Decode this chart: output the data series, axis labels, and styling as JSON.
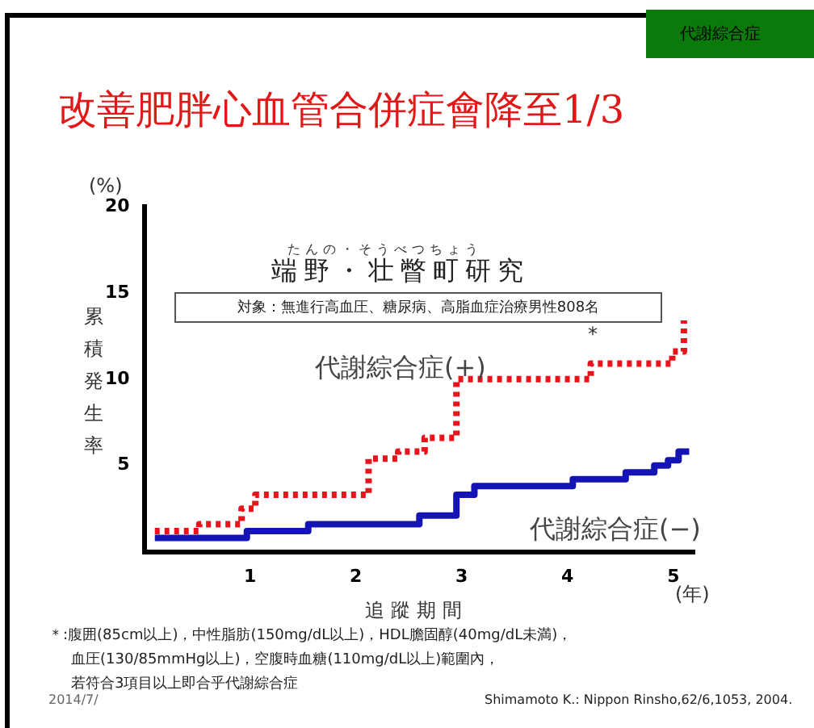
{
  "chart_data": {
    "type": "step",
    "title": "改善肥胖心血管合併症會降至1/3",
    "subtitle": "端野・壮瞥町研究",
    "xlabel": "追蹤期間",
    "ylabel": "累積発生率",
    "annotations": [
      "代謝綜合症",
      "たんの・そうべつちょう",
      "対象：無進行高血圧、糖尿病、高脂血症治療男性808名",
      "(%)",
      "(年)",
      "＊:腹囲(85cm以上)，中性脂肪(150mg/dL以上)，HDL膽固醇(40mg/dL未満)，",
      "血圧(130/85mmHg以上)，空腹時血糖(110mg/dL以上)範圍內，",
      "若符合3項目以上即合乎代謝綜合症",
      "2014/7/",
      "Shimamoto K.: Nippon Rinsho,62/6,1053, 2004.",
      "*"
    ],
    "xlim": [
      0,
      5.2
    ],
    "xticks": [
      1,
      2,
      3,
      4,
      5
    ],
    "ylim": [
      0,
      20
    ],
    "yticks": [
      5,
      10,
      15,
      20
    ],
    "grid": false,
    "legend": false,
    "series": [
      {
        "name": "代謝綜合症(+)",
        "color": "#e8141c",
        "line_style": "dotted",
        "x": [
          0.1,
          0.52,
          0.92,
          1.05,
          2.12,
          2.4,
          2.65,
          2.95,
          4.22,
          4.99,
          5.1
        ],
        "values": [
          1.2,
          1.6,
          2.5,
          3.3,
          5.4,
          5.8,
          6.6,
          10,
          10.9,
          11.6,
          13.4
        ]
      },
      {
        "name": "代謝綜合症(−)",
        "color": "#1414b4",
        "line_style": "solid",
        "x": [
          0.1,
          0.97,
          1.55,
          2.6,
          2.95,
          3.12,
          4.05,
          4.55,
          4.82,
          4.95,
          5.05,
          5.15
        ],
        "values": [
          0.8,
          1.2,
          1.6,
          2.1,
          3.3,
          3.8,
          4.2,
          4.6,
          5,
          5.3,
          5.8,
          5.8
        ]
      }
    ]
  }
}
